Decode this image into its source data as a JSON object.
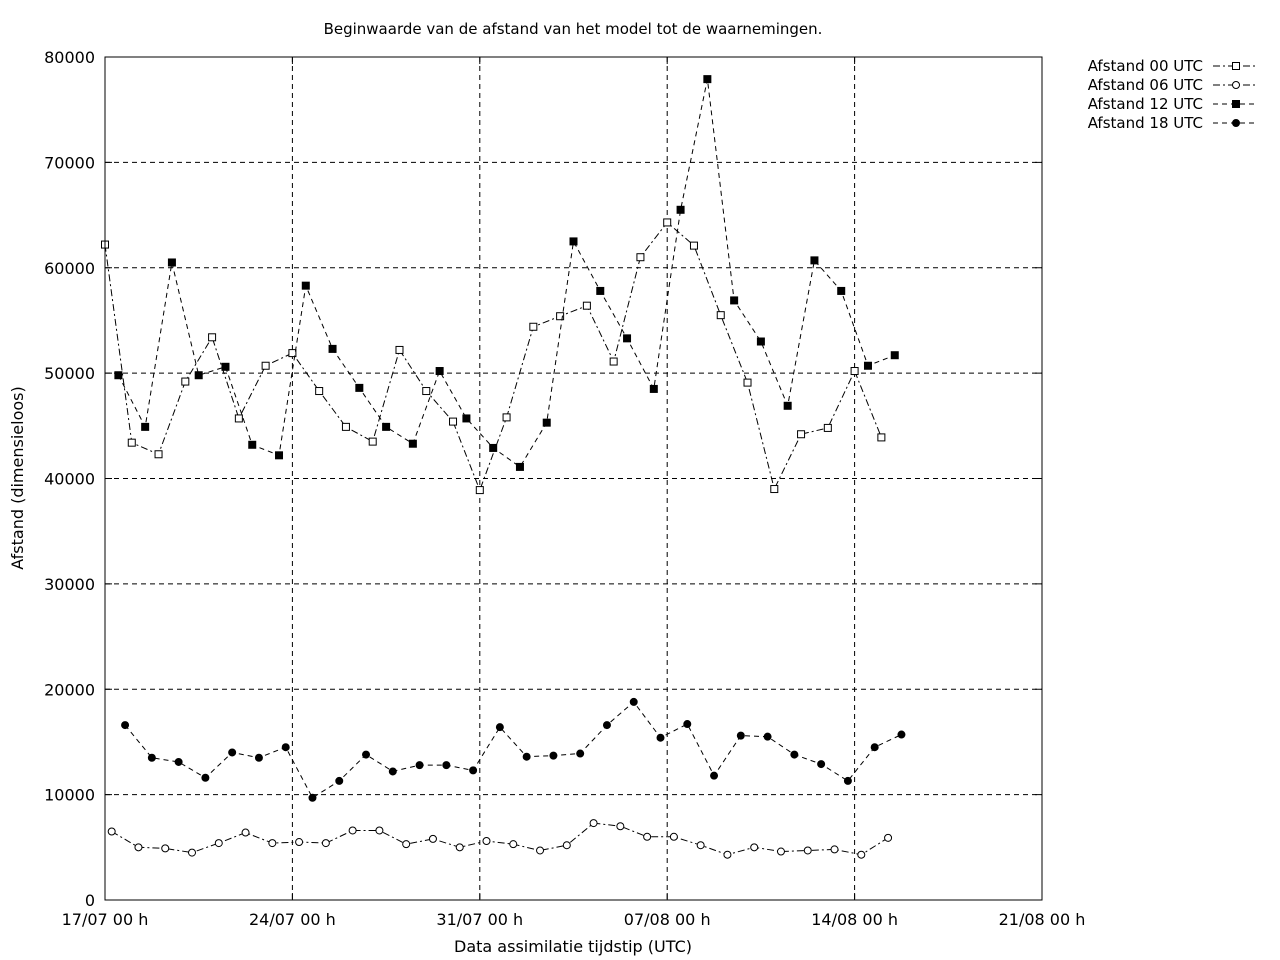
{
  "chart_data": {
    "type": "line",
    "title": "Beginwaarde van de afstand van het model tot de waarnemingen.",
    "xlabel": "Data assimilatie tijdstip (UTC)",
    "ylabel": "Afstand (dimensieloos)",
    "xlim": [
      "2023-07-17T00:00",
      "2023-08-21T00:00"
    ],
    "ylim": [
      0,
      80000
    ],
    "grid": true,
    "legend_position": "outside-top-right",
    "x_ticks": [
      {
        "x": "2023-07-17T00:00",
        "label": "17/07 00 h"
      },
      {
        "x": "2023-07-24T00:00",
        "label": "24/07 00 h"
      },
      {
        "x": "2023-07-31T00:00",
        "label": "31/07 00 h"
      },
      {
        "x": "2023-08-07T00:00",
        "label": "07/08 00 h"
      },
      {
        "x": "2023-08-14T00:00",
        "label": "14/08 00 h"
      },
      {
        "x": "2023-08-21T00:00",
        "label": "21/08 00 h"
      }
    ],
    "y_ticks": [
      {
        "y": 0,
        "label": "0"
      },
      {
        "y": 10000,
        "label": "10000"
      },
      {
        "y": 20000,
        "label": "20000"
      },
      {
        "y": 30000,
        "label": "30000"
      },
      {
        "y": 40000,
        "label": "40000"
      },
      {
        "y": 50000,
        "label": "50000"
      },
      {
        "y": 60000,
        "label": "60000"
      },
      {
        "y": 70000,
        "label": "70000"
      },
      {
        "y": 80000,
        "label": "80000"
      }
    ],
    "series": [
      {
        "name": "Afstand 00 UTC",
        "marker": "open-square",
        "dash": "dash-dot",
        "x": [
          "2023-07-17T00:00",
          "2023-07-18T00:00",
          "2023-07-19T00:00",
          "2023-07-20T00:00",
          "2023-07-21T00:00",
          "2023-07-22T00:00",
          "2023-07-23T00:00",
          "2023-07-24T00:00",
          "2023-07-25T00:00",
          "2023-07-26T00:00",
          "2023-07-27T00:00",
          "2023-07-28T00:00",
          "2023-07-29T00:00",
          "2023-07-30T00:00",
          "2023-07-31T00:00",
          "2023-08-01T00:00",
          "2023-08-02T00:00",
          "2023-08-03T00:00",
          "2023-08-04T00:00",
          "2023-08-05T00:00",
          "2023-08-06T00:00",
          "2023-08-07T00:00",
          "2023-08-08T00:00",
          "2023-08-09T00:00",
          "2023-08-10T00:00",
          "2023-08-11T00:00",
          "2023-08-12T00:00",
          "2023-08-13T00:00",
          "2023-08-14T00:00",
          "2023-08-15T00:00",
          "2023-08-16T00:00"
        ],
        "y": [
          62200,
          43400,
          42300,
          49200,
          53400,
          45700,
          50700,
          51900,
          48300,
          44900,
          43500,
          52200,
          48300,
          45400,
          38900,
          45800,
          54400,
          55400,
          56400,
          51100,
          61000,
          64300,
          62100,
          55500,
          49100,
          39000,
          44200,
          44800,
          50200,
          43900,
          null
        ]
      },
      {
        "name": "Afstand 06 UTC",
        "marker": "open-circle",
        "dash": "dash-dot",
        "x": [
          "2023-07-17T06:00",
          "2023-07-18T06:00",
          "2023-07-19T06:00",
          "2023-07-20T06:00",
          "2023-07-21T06:00",
          "2023-07-22T06:00",
          "2023-07-23T06:00",
          "2023-07-24T06:00",
          "2023-07-25T06:00",
          "2023-07-26T06:00",
          "2023-07-27T06:00",
          "2023-07-28T06:00",
          "2023-07-29T06:00",
          "2023-07-30T06:00",
          "2023-07-31T06:00",
          "2023-08-01T06:00",
          "2023-08-02T06:00",
          "2023-08-03T06:00",
          "2023-08-04T06:00",
          "2023-08-05T06:00",
          "2023-08-06T06:00",
          "2023-08-07T06:00",
          "2023-08-08T06:00",
          "2023-08-09T06:00",
          "2023-08-10T06:00",
          "2023-08-11T06:00",
          "2023-08-12T06:00",
          "2023-08-13T06:00",
          "2023-08-14T06:00",
          "2023-08-15T06:00"
        ],
        "y": [
          6500,
          5000,
          4900,
          4500,
          5400,
          6400,
          5400,
          5500,
          5400,
          6600,
          6600,
          5300,
          5800,
          5000,
          5600,
          5300,
          4700,
          5200,
          7300,
          7000,
          6000,
          6000,
          5200,
          4300,
          5000,
          4600,
          4700,
          4800,
          4300,
          5900
        ]
      },
      {
        "name": "Afstand 12 UTC",
        "marker": "filled-square",
        "dash": "dash",
        "x": [
          "2023-07-17T12:00",
          "2023-07-18T12:00",
          "2023-07-19T12:00",
          "2023-07-20T12:00",
          "2023-07-21T12:00",
          "2023-07-22T12:00",
          "2023-07-23T12:00",
          "2023-07-24T12:00",
          "2023-07-25T12:00",
          "2023-07-26T12:00",
          "2023-07-27T12:00",
          "2023-07-28T12:00",
          "2023-07-29T12:00",
          "2023-07-30T12:00",
          "2023-07-31T12:00",
          "2023-08-01T12:00",
          "2023-08-02T12:00",
          "2023-08-03T12:00",
          "2023-08-04T12:00",
          "2023-08-05T12:00",
          "2023-08-06T12:00",
          "2023-08-07T12:00",
          "2023-08-08T12:00",
          "2023-08-09T12:00",
          "2023-08-10T12:00",
          "2023-08-11T12:00",
          "2023-08-12T12:00",
          "2023-08-13T12:00",
          "2023-08-14T12:00",
          "2023-08-15T12:00"
        ],
        "y": [
          49800,
          44900,
          60500,
          49800,
          50600,
          43200,
          42200,
          58300,
          52300,
          48600,
          44900,
          43300,
          50200,
          45700,
          42900,
          41100,
          45300,
          62500,
          57800,
          53300,
          48500,
          65500,
          77900,
          56900,
          53000,
          46900,
          60700,
          57800,
          50700,
          51700
        ]
      },
      {
        "name": "Afstand 18 UTC",
        "marker": "filled-circle",
        "dash": "dash",
        "x": [
          "2023-07-17T18:00",
          "2023-07-18T18:00",
          "2023-07-19T18:00",
          "2023-07-20T18:00",
          "2023-07-21T18:00",
          "2023-07-22T18:00",
          "2023-07-23T18:00",
          "2023-07-24T18:00",
          "2023-07-25T18:00",
          "2023-07-26T18:00",
          "2023-07-27T18:00",
          "2023-07-28T18:00",
          "2023-07-29T18:00",
          "2023-07-30T18:00",
          "2023-07-31T18:00",
          "2023-08-01T18:00",
          "2023-08-02T18:00",
          "2023-08-03T18:00",
          "2023-08-04T18:00",
          "2023-08-05T18:00",
          "2023-08-06T18:00",
          "2023-08-07T18:00",
          "2023-08-08T18:00",
          "2023-08-09T18:00",
          "2023-08-10T18:00",
          "2023-08-11T18:00",
          "2023-08-12T18:00",
          "2023-08-13T18:00",
          "2023-08-14T18:00",
          "2023-08-15T18:00"
        ],
        "y": [
          16600,
          13500,
          13100,
          11600,
          14000,
          13500,
          14500,
          9700,
          11300,
          13800,
          12200,
          12800,
          12800,
          12300,
          16400,
          13600,
          13700,
          13900,
          16600,
          18800,
          15400,
          16700,
          11800,
          15600,
          15500,
          13800,
          12900,
          11300,
          14500,
          15700
        ]
      }
    ]
  }
}
